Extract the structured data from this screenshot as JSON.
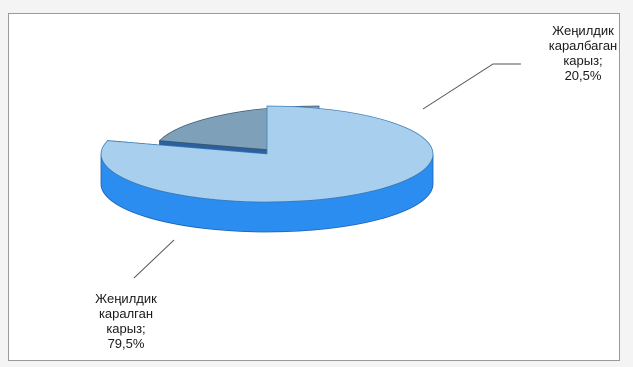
{
  "chart_data": {
    "type": "pie",
    "style": "3d-exploded",
    "title": "",
    "slices": [
      {
        "label": "Жеңилдик караланган карыз",
        "label_lines": [
          "Жеңилдик",
          "каралган",
          "карыз;",
          "79,5%"
        ],
        "value": 79.5,
        "top_color": "#a9cfee",
        "side_color": "#2b8df0"
      },
      {
        "label": "Жеңилдик каралбаган карыз",
        "label_lines": [
          "Жеңилдик",
          "каралбаган",
          "карыз;",
          "20,5%"
        ],
        "value": 20.5,
        "top_color": "#7ea1b9",
        "side_color": "#2c5f9c"
      }
    ]
  }
}
